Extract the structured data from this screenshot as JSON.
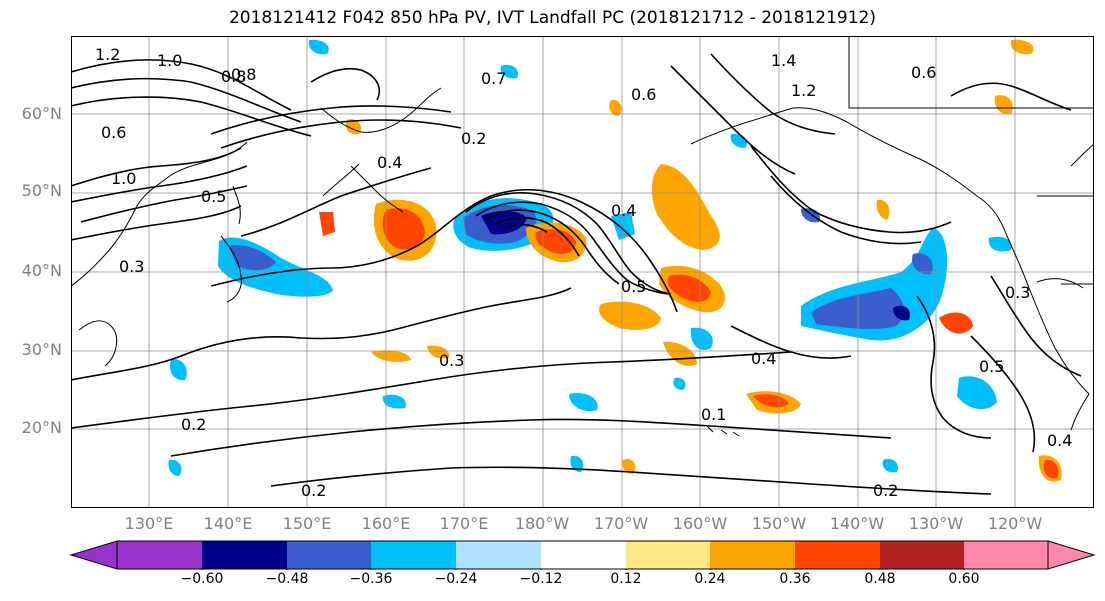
{
  "title": "2018121412 F042 850 hPa PV, IVT Landfall PC (2018121712 - 2018121912)",
  "map": {
    "lat_labels": [
      "60°N",
      "50°N",
      "40°N",
      "30°N",
      "20°N"
    ],
    "lon_labels": [
      "130°E",
      "140°E",
      "150°E",
      "160°E",
      "170°E",
      "180°W",
      "170°W",
      "160°W",
      "150°W",
      "140°W",
      "130°W",
      "120°W"
    ],
    "contour_labels": [
      "1.2",
      "1.0",
      "0.8",
      "1.4",
      "0.6",
      "0.7",
      "0.2",
      "0.4",
      "0.5",
      "0.3",
      "0.2",
      "0.3",
      "0.2",
      "0.4",
      "0.5",
      "0.2",
      "1.0",
      "0.8",
      "0.5",
      "0.6",
      "0.4",
      "0.1",
      "1.2",
      "0.6",
      "0.3",
      "0.4"
    ]
  },
  "colorbar": {
    "ticks": [
      "−0.60",
      "−0.48",
      "−0.36",
      "−0.24",
      "−0.12",
      "0.12",
      "0.24",
      "0.36",
      "0.48",
      "0.60"
    ],
    "colors": [
      "#9932cc",
      "#00008b",
      "#3a5fcd",
      "#00bfff",
      "#b0e2ff",
      "#ffffff",
      "#ffe784",
      "#ffa500",
      "#ff4500",
      "#b22222",
      "#ff88aa"
    ]
  }
}
